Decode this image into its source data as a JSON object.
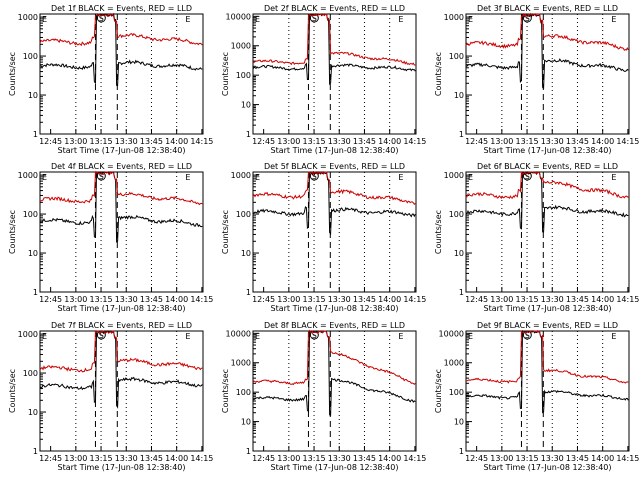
{
  "chart_data": [
    {
      "type": "line",
      "title": "Det 1f BLACK = Events, RED = LLD",
      "xlabel": "Start Time (17-Jun-08 12:38:40)",
      "ylabel": "Counts/sec",
      "x_ticks": [
        "12:45",
        "13:00",
        "13:15",
        "13:30",
        "13:45",
        "14:00",
        "14:15"
      ],
      "y_ticks": [
        "1",
        "10",
        "100",
        "1000"
      ],
      "ylim": [
        1,
        1200
      ],
      "scale": "log",
      "markers": [
        "E",
        "S",
        "E"
      ],
      "series": [
        {
          "name": "Events",
          "color": "#000000",
          "before": 55,
          "after": 70,
          "end": 50
        },
        {
          "name": "LLD",
          "color": "#cc0000",
          "before": 230,
          "after": 350,
          "end": 220
        }
      ]
    },
    {
      "type": "line",
      "title": "Det 2f BLACK = Events, RED = LLD",
      "xlabel": "Start Time (17-Jun-08 12:38:40)",
      "ylabel": "Counts/sec",
      "x_ticks": [
        "12:45",
        "13:00",
        "13:15",
        "13:30",
        "13:45",
        "14:00",
        "14:15"
      ],
      "y_ticks": [
        "1",
        "10",
        "100",
        "1000",
        "10000"
      ],
      "ylim": [
        1,
        12000
      ],
      "scale": "log",
      "markers": [
        "E",
        "S",
        "E"
      ],
      "series": [
        {
          "name": "Events",
          "color": "#000000",
          "before": 180,
          "after": 220,
          "end": 160
        },
        {
          "name": "LLD",
          "color": "#cc0000",
          "before": 280,
          "after": 600,
          "end": 250
        }
      ]
    },
    {
      "type": "line",
      "title": "Det 3f BLACK = Events, RED = LLD",
      "xlabel": "Start Time (17-Jun-08 12:38:40)",
      "ylabel": "Counts/sec",
      "x_ticks": [
        "12:45",
        "13:00",
        "13:15",
        "13:30",
        "13:45",
        "14:00",
        "14:15"
      ],
      "y_ticks": [
        "1",
        "10",
        "100",
        "1000"
      ],
      "ylim": [
        1,
        1200
      ],
      "scale": "log",
      "markers": [
        "E",
        "S",
        "E"
      ],
      "series": [
        {
          "name": "Events",
          "color": "#000000",
          "before": 55,
          "after": 80,
          "end": 45
        },
        {
          "name": "LLD",
          "color": "#cc0000",
          "before": 200,
          "after": 350,
          "end": 160
        }
      ]
    },
    {
      "type": "line",
      "title": "Det 4f BLACK = Events, RED = LLD",
      "xlabel": "Start Time (17-Jun-08 12:38:40)",
      "ylabel": "Counts/sec",
      "x_ticks": [
        "12:45",
        "13:00",
        "13:15",
        "13:30",
        "13:45",
        "14:00",
        "14:15"
      ],
      "y_ticks": [
        "1",
        "10",
        "100",
        "1000"
      ],
      "ylim": [
        1,
        1200
      ],
      "scale": "log",
      "markers": [
        "E",
        "S",
        "E"
      ],
      "series": [
        {
          "name": "Events",
          "color": "#000000",
          "before": 65,
          "after": 85,
          "end": 55
        },
        {
          "name": "LLD",
          "color": "#cc0000",
          "before": 230,
          "after": 340,
          "end": 200
        }
      ]
    },
    {
      "type": "line",
      "title": "Det 5f BLACK = Events, RED = LLD",
      "xlabel": "Start Time (17-Jun-08 12:38:40)",
      "ylabel": "Counts/sec",
      "x_ticks": [
        "12:45",
        "13:00",
        "13:15",
        "13:30",
        "13:45",
        "14:00",
        "14:15"
      ],
      "y_ticks": [
        "1",
        "10",
        "100",
        "1000"
      ],
      "ylim": [
        1,
        1200
      ],
      "scale": "log",
      "markers": [
        "E",
        "S",
        "E"
      ],
      "series": [
        {
          "name": "Events",
          "color": "#000000",
          "before": 110,
          "after": 130,
          "end": 100
        },
        {
          "name": "LLD",
          "color": "#cc0000",
          "before": 300,
          "after": 400,
          "end": 200
        }
      ]
    },
    {
      "type": "line",
      "title": "Det 6f BLACK = Events, RED = LLD",
      "xlabel": "Start Time (17-Jun-08 12:38:40)",
      "ylabel": "Counts/sec",
      "x_ticks": [
        "12:45",
        "13:00",
        "13:15",
        "13:30",
        "13:45",
        "14:00",
        "14:15"
      ],
      "y_ticks": [
        "1",
        "10",
        "100",
        "1000"
      ],
      "ylim": [
        1,
        1200
      ],
      "scale": "log",
      "markers": [
        "E",
        "S",
        "E"
      ],
      "series": [
        {
          "name": "Events",
          "color": "#000000",
          "before": 110,
          "after": 150,
          "end": 100
        },
        {
          "name": "LLD",
          "color": "#cc0000",
          "before": 300,
          "after": 700,
          "end": 280
        }
      ]
    },
    {
      "type": "line",
      "title": "Det 7f BLACK = Events, RED = LLD",
      "xlabel": "Start Time (17-Jun-08 12:38:40)",
      "ylabel": "Counts/sec",
      "x_ticks": [
        "12:45",
        "13:00",
        "13:15",
        "13:30",
        "13:45",
        "14:00",
        "14:15"
      ],
      "y_ticks": [
        "1",
        "10",
        "100",
        "1000"
      ],
      "ylim": [
        1,
        1200
      ],
      "scale": "log",
      "markers": [
        "E",
        "S",
        "E"
      ],
      "series": [
        {
          "name": "Events",
          "color": "#000000",
          "before": 45,
          "after": 70,
          "end": 50
        },
        {
          "name": "LLD",
          "color": "#cc0000",
          "before": 130,
          "after": 220,
          "end": 140
        }
      ]
    },
    {
      "type": "line",
      "title": "Det 8f BLACK = Events, RED = LLD",
      "xlabel": "Start Time (17-Jun-08 12:38:40)",
      "ylabel": "Counts/sec",
      "x_ticks": [
        "12:45",
        "13:00",
        "13:15",
        "13:30",
        "13:45",
        "14:00",
        "14:15"
      ],
      "y_ticks": [
        "1",
        "10",
        "100",
        "1000",
        "10000"
      ],
      "ylim": [
        1,
        12000
      ],
      "scale": "log",
      "markers": [
        "E",
        "S",
        "E"
      ],
      "series": [
        {
          "name": "Events",
          "color": "#000000",
          "before": 60,
          "after": 300,
          "end": 50
        },
        {
          "name": "LLD",
          "color": "#cc0000",
          "before": 220,
          "after": 2500,
          "end": 200
        }
      ]
    },
    {
      "type": "line",
      "title": "Det 9f BLACK = Events, RED = LLD",
      "xlabel": "Start Time (17-Jun-08 12:38:40)",
      "ylabel": "Counts/sec",
      "x_ticks": [
        "12:45",
        "13:00",
        "13:15",
        "13:30",
        "13:45",
        "14:00",
        "14:15"
      ],
      "y_ticks": [
        "1",
        "10",
        "100",
        "1000",
        "10000"
      ],
      "ylim": [
        1,
        12000
      ],
      "scale": "log",
      "markers": [
        "E",
        "S",
        "E"
      ],
      "series": [
        {
          "name": "Events",
          "color": "#000000",
          "before": 70,
          "after": 110,
          "end": 60
        },
        {
          "name": "LLD",
          "color": "#cc0000",
          "before": 250,
          "after": 600,
          "end": 220
        }
      ]
    }
  ]
}
